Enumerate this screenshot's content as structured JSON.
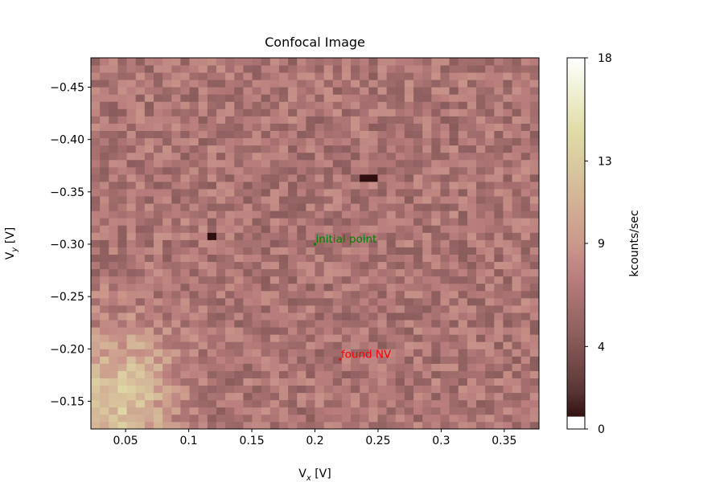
{
  "chart_data": {
    "type": "heatmap",
    "title": "Confocal Image",
    "xlabel_main": "V",
    "xlabel_sub": "x",
    "xlabel_unit": " [V]",
    "ylabel_main": "V",
    "ylabel_sub": "y",
    "ylabel_unit": " [V]",
    "xlim": [
      0.0225,
      0.3775
    ],
    "ylim": [
      -0.1235,
      -0.478
    ],
    "x_ticks": [
      0.05,
      0.1,
      0.15,
      0.2,
      0.25,
      0.3,
      0.35
    ],
    "x_tick_labels": [
      "0.05",
      "0.1",
      "0.15",
      "0.2",
      "0.25",
      "0.3",
      "0.35"
    ],
    "y_ticks": [
      -0.45,
      -0.4,
      -0.35,
      -0.3,
      -0.25,
      -0.2,
      -0.15
    ],
    "y_tick_labels": [
      "−0.45",
      "−0.40",
      "−0.35",
      "−0.30",
      "−0.25",
      "−0.20",
      "−0.15"
    ],
    "grid": {
      "nx": 50,
      "ny": 51,
      "x_start": 0.0225,
      "x_end": 0.3775,
      "y_start": -0.1235,
      "y_end": -0.478
    },
    "background_kcps": 6.5,
    "bright_region": {
      "center_x": 0.045,
      "center_y": -0.155,
      "peak_kcps": 12.5,
      "radius_x": 0.05,
      "radius_y": 0.075
    },
    "dark_pixels": [
      {
        "x": 0.12,
        "y": -0.31,
        "kcps": 0.5
      },
      {
        "x": 0.242,
        "y": -0.362,
        "kcps": 0.5
      }
    ],
    "colorbar": {
      "label": "kcounts/sec",
      "vmin": 0,
      "vmax": 18,
      "ticks": [
        0,
        4,
        9,
        13,
        18
      ],
      "tick_labels": [
        "0",
        "4",
        "9",
        "13",
        "18"
      ],
      "colormap": "pink",
      "under_color": "#ffffff"
    },
    "annotations": [
      {
        "text": "initial point",
        "x": 0.2,
        "y": -0.3,
        "color": "#008000"
      },
      {
        "text": "found NV",
        "x": 0.22,
        "y": -0.19,
        "color": "#ff0000"
      }
    ]
  }
}
